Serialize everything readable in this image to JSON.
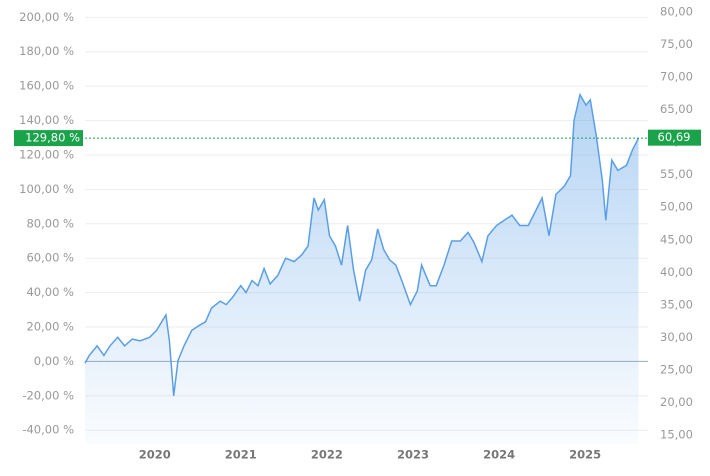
{
  "chart_data": {
    "type": "line",
    "x": [
      2019.19,
      2019.24,
      2019.33,
      2019.41,
      2019.48,
      2019.57,
      2019.65,
      2019.74,
      2019.83,
      2019.94,
      2020.02,
      2020.13,
      2020.17,
      2020.22,
      2020.27,
      2020.34,
      2020.43,
      2020.52,
      2020.59,
      2020.66,
      2020.76,
      2020.83,
      2020.9,
      2021.0,
      2021.06,
      2021.13,
      2021.2,
      2021.27,
      2021.34,
      2021.43,
      2021.52,
      2021.62,
      2021.71,
      2021.78,
      2021.85,
      2021.9,
      2021.97,
      2022.03,
      2022.1,
      2022.17,
      2022.24,
      2022.31,
      2022.38,
      2022.45,
      2022.52,
      2022.59,
      2022.66,
      2022.73,
      2022.8,
      2022.87,
      2022.97,
      2023.05,
      2023.1,
      2023.2,
      2023.27,
      2023.36,
      2023.45,
      2023.55,
      2023.64,
      2023.71,
      2023.8,
      2023.87,
      2023.97,
      2024.06,
      2024.15,
      2024.24,
      2024.34,
      2024.43,
      2024.5,
      2024.58,
      2024.66,
      2024.76,
      2024.83,
      2024.87,
      2024.94,
      2025.01,
      2025.06,
      2025.13,
      2025.2,
      2025.24,
      2025.31,
      2025.38,
      2025.48,
      2025.55,
      2025.62
    ],
    "series": [
      {
        "color": "#5a9fe6",
        "values": [
          -1,
          3.5,
          9,
          3.5,
          9,
          14,
          9,
          13,
          12,
          14,
          18,
          27,
          12,
          -20,
          0.5,
          9,
          18,
          21,
          23,
          31,
          35,
          33,
          37,
          44,
          40,
          47,
          44,
          54,
          45,
          50,
          60,
          58,
          62,
          67,
          95,
          88,
          94,
          73,
          67,
          56,
          79,
          53,
          35,
          53,
          59,
          77,
          65,
          59,
          56,
          47,
          33,
          41,
          56,
          44,
          44,
          56,
          70,
          70,
          75,
          69,
          58,
          73,
          79,
          82,
          85,
          79,
          79,
          88,
          95,
          73,
          97,
          102,
          108,
          140,
          155,
          149,
          152,
          131,
          105,
          82,
          117,
          111,
          114,
          123,
          129.8
        ]
      }
    ],
    "xlim": [
      2019.19,
      2025.73
    ],
    "xticks": [
      2020,
      2021,
      2022,
      2023,
      2024,
      2025
    ],
    "ylim": [
      -48,
      206
    ],
    "yticks": [
      {
        "value": -40,
        "label": "-40,00 %"
      },
      {
        "value": -20,
        "label": "-20,00 %"
      },
      {
        "value": 0,
        "label": "0,00 %"
      },
      {
        "value": 20,
        "label": "20,00 %"
      },
      {
        "value": 40,
        "label": "40,00 %"
      },
      {
        "value": 60,
        "label": "60,00 %"
      },
      {
        "value": 80,
        "label": "80,00 %"
      },
      {
        "value": 100,
        "label": "100,00 %"
      },
      {
        "value": 120,
        "label": "120,00 %"
      },
      {
        "value": 140,
        "label": "140,00 %"
      },
      {
        "value": 160,
        "label": "160,00 %"
      },
      {
        "value": 180,
        "label": "180,00 %"
      },
      {
        "value": 200,
        "label": "200,00 %"
      }
    ],
    "y2lim": [
      13.62,
      80.77
    ],
    "y2ticks": [
      {
        "value": 15,
        "label": "15,00"
      },
      {
        "value": 20,
        "label": "20,00"
      },
      {
        "value": 25,
        "label": "25,00"
      },
      {
        "value": 30,
        "label": "30,00"
      },
      {
        "value": 35,
        "label": "35,00"
      },
      {
        "value": 40,
        "label": "40,00"
      },
      {
        "value": 45,
        "label": "45,00"
      },
      {
        "value": 50,
        "label": "50,00"
      },
      {
        "value": 55,
        "label": "55,00"
      },
      {
        "value": 60,
        "label": "60,00"
      },
      {
        "value": 65,
        "label": "65,00"
      },
      {
        "value": 70,
        "label": "70,00"
      },
      {
        "value": 75,
        "label": "75,00"
      },
      {
        "value": 80,
        "label": "80,00"
      }
    ],
    "current": {
      "value": 129.8,
      "label": "129,80 %"
    },
    "current_price": {
      "value": 60.69,
      "label": "60,69"
    },
    "badge_color": "#1aa34a",
    "grid": true
  }
}
